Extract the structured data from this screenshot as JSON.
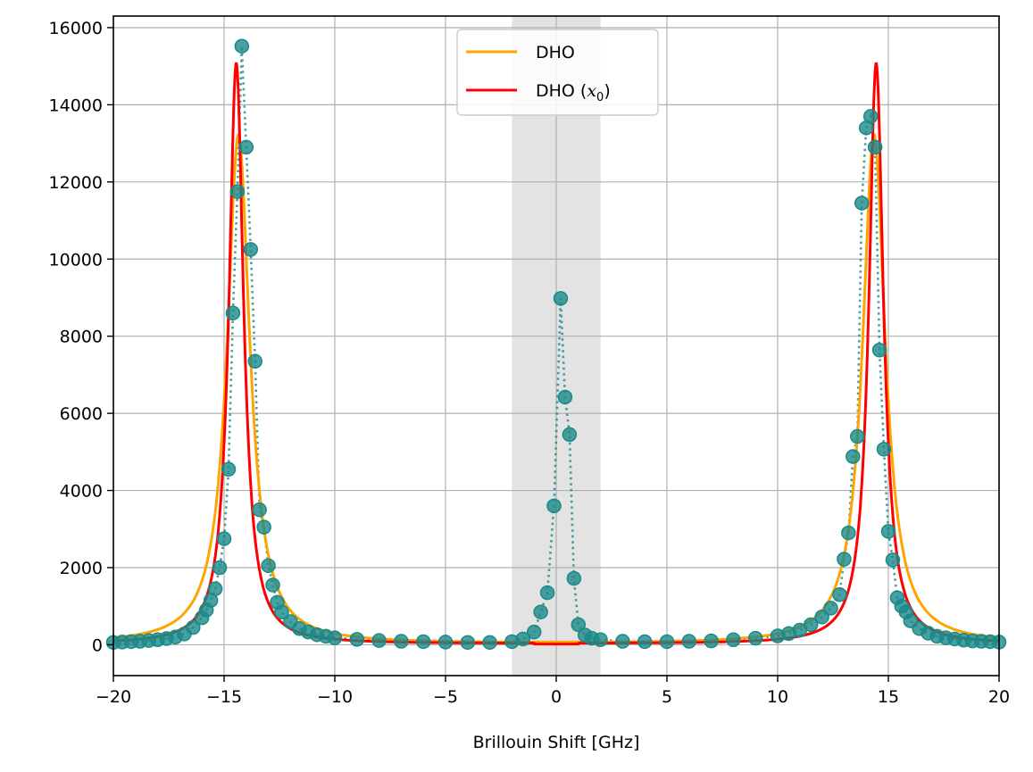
{
  "chart_data": {
    "type": "scatter",
    "title": "",
    "xlabel": "Brillouin Shift [GHz]",
    "ylabel": "",
    "xlim": [
      -20,
      20
    ],
    "ylim": [
      -800,
      16300
    ],
    "grid": true,
    "xticks": [
      -20,
      -15,
      -10,
      -5,
      0,
      5,
      10,
      15,
      20
    ],
    "xtick_labels": [
      "−20",
      "−15",
      "−10",
      "−5",
      "0",
      "5",
      "10",
      "15",
      "20"
    ],
    "yticks": [
      0,
      2000,
      4000,
      6000,
      8000,
      10000,
      12000,
      14000,
      16000
    ],
    "ytick_labels": [
      "0",
      "2000",
      "4000",
      "6000",
      "8000",
      "10000",
      "12000",
      "14000",
      "16000"
    ],
    "shaded_region": {
      "x_range": [
        -2,
        2
      ],
      "color": "#d9d9d9"
    },
    "legend": {
      "placement": "upper center",
      "entries": [
        {
          "label": "DHO",
          "label_main": "DHO",
          "label_math": "",
          "color": "#ffa500"
        },
        {
          "label": "DHO (x₀)",
          "label_main": "DHO (",
          "label_math": "x",
          "label_sub": "0",
          "label_close": ")",
          "color": "#ff0000"
        }
      ]
    },
    "series": [
      {
        "name": "data",
        "style": "scatter with dotted line",
        "color": "#1a8a88",
        "x": [
          -20,
          -19.6,
          -19.2,
          -18.8,
          -18.4,
          -18.0,
          -17.6,
          -17.2,
          -16.8,
          -16.4,
          -16.0,
          -15.8,
          -15.6,
          -15.4,
          -15.2,
          -15.0,
          -14.8,
          -14.6,
          -14.4,
          -14.2,
          -14.0,
          -13.8,
          -13.6,
          -13.4,
          -13.2,
          -13.0,
          -12.8,
          -12.6,
          -12.4,
          -12.0,
          -11.6,
          -11.2,
          -10.8,
          -10.4,
          -10.0,
          -9.0,
          -8.0,
          -7.0,
          -6.0,
          -5.0,
          -4.0,
          -3.0,
          -2.0,
          -1.5,
          -1.0,
          -0.7,
          -0.4,
          -0.1,
          0.2,
          0.4,
          0.6,
          0.8,
          1.0,
          1.3,
          1.6,
          2.0,
          3.0,
          4.0,
          5.0,
          6.0,
          7.0,
          8.0,
          9.0,
          10.0,
          10.5,
          11.0,
          11.5,
          12.0,
          12.4,
          12.8,
          13.0,
          13.2,
          13.4,
          13.6,
          13.8,
          14.0,
          14.2,
          14.4,
          14.6,
          14.8,
          15.0,
          15.2,
          15.4,
          15.6,
          15.8,
          16.0,
          16.4,
          16.8,
          17.2,
          17.6,
          18.0,
          18.4,
          18.8,
          19.2,
          19.6,
          20.0
        ],
        "y": [
          60,
          70,
          80,
          90,
          110,
          130,
          160,
          200,
          280,
          450,
          700,
          900,
          1150,
          1450,
          2000,
          2750,
          4550,
          8600,
          11750,
          15520,
          12900,
          10250,
          7350,
          3500,
          3050,
          2050,
          1550,
          1100,
          850,
          600,
          420,
          330,
          260,
          220,
          180,
          140,
          110,
          90,
          80,
          70,
          60,
          60,
          80,
          150,
          330,
          850,
          1350,
          3600,
          8980,
          6420,
          5450,
          1720,
          520,
          250,
          170,
          130,
          90,
          80,
          80,
          90,
          100,
          130,
          170,
          230,
          290,
          380,
          520,
          720,
          950,
          1300,
          2220,
          2900,
          4880,
          5400,
          11450,
          13400,
          13700,
          12900,
          7640,
          5070,
          2940,
          2200,
          1220,
          1000,
          850,
          620,
          420,
          300,
          220,
          180,
          150,
          120,
          100,
          90,
          80,
          70
        ]
      },
      {
        "name": "DHO",
        "style": "line",
        "color": "#ffa500",
        "center": 14.35,
        "gamma": 0.62,
        "amplitude": 13200,
        "baseline": 20
      },
      {
        "name": "DHO (x₀)",
        "style": "line",
        "color": "#ff0000",
        "center": 14.45,
        "gamma": 0.4,
        "amplitude": 15050,
        "baseline": 20,
        "gap": [
          -1,
          1
        ]
      }
    ]
  }
}
